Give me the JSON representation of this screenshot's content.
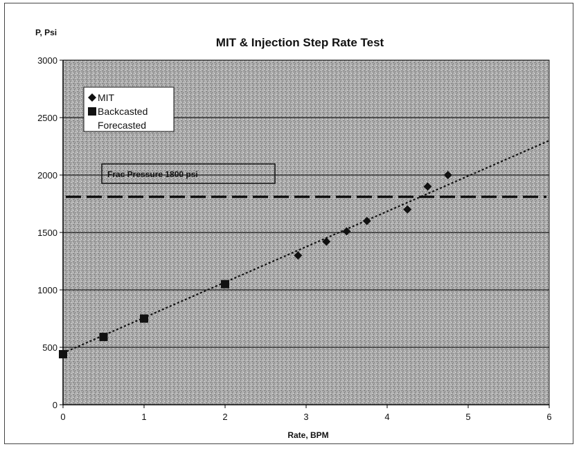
{
  "chart_data": {
    "type": "scatter",
    "title": "MIT & Injection Step Rate Test",
    "ylabel": "P, Psi",
    "xlabel": "Rate, BPM",
    "xlim": [
      0,
      6
    ],
    "ylim": [
      0,
      3000
    ],
    "x_ticks": [
      0,
      1,
      2,
      3,
      4,
      5,
      6
    ],
    "y_ticks": [
      0,
      500,
      1000,
      1500,
      2000,
      2500,
      3000
    ],
    "grid": "horizontal",
    "legend_position": "top-left",
    "series": [
      {
        "name": "MIT",
        "marker": "diamond",
        "color": "#111111",
        "points": [
          [
            2.9,
            1300
          ],
          [
            3.25,
            1420
          ],
          [
            3.5,
            1510
          ],
          [
            3.75,
            1600
          ],
          [
            4.25,
            1700
          ],
          [
            4.5,
            1900
          ],
          [
            4.75,
            2000
          ]
        ]
      },
      {
        "name": "Backcasted",
        "marker": "square",
        "color": "#111111",
        "points": [
          [
            0,
            440
          ],
          [
            0.5,
            590
          ],
          [
            1.0,
            750
          ],
          [
            2.0,
            1050
          ]
        ]
      },
      {
        "name": "Forecasted",
        "marker": "none",
        "color": "#ffffff",
        "points": []
      }
    ],
    "trend_line": {
      "from": [
        0,
        450
      ],
      "to": [
        6,
        2300
      ],
      "style": "dotted"
    },
    "reference_line": {
      "y": 1810,
      "style": "dashed"
    },
    "annotation": {
      "text": "Frac Pressure 1800 psi"
    }
  }
}
